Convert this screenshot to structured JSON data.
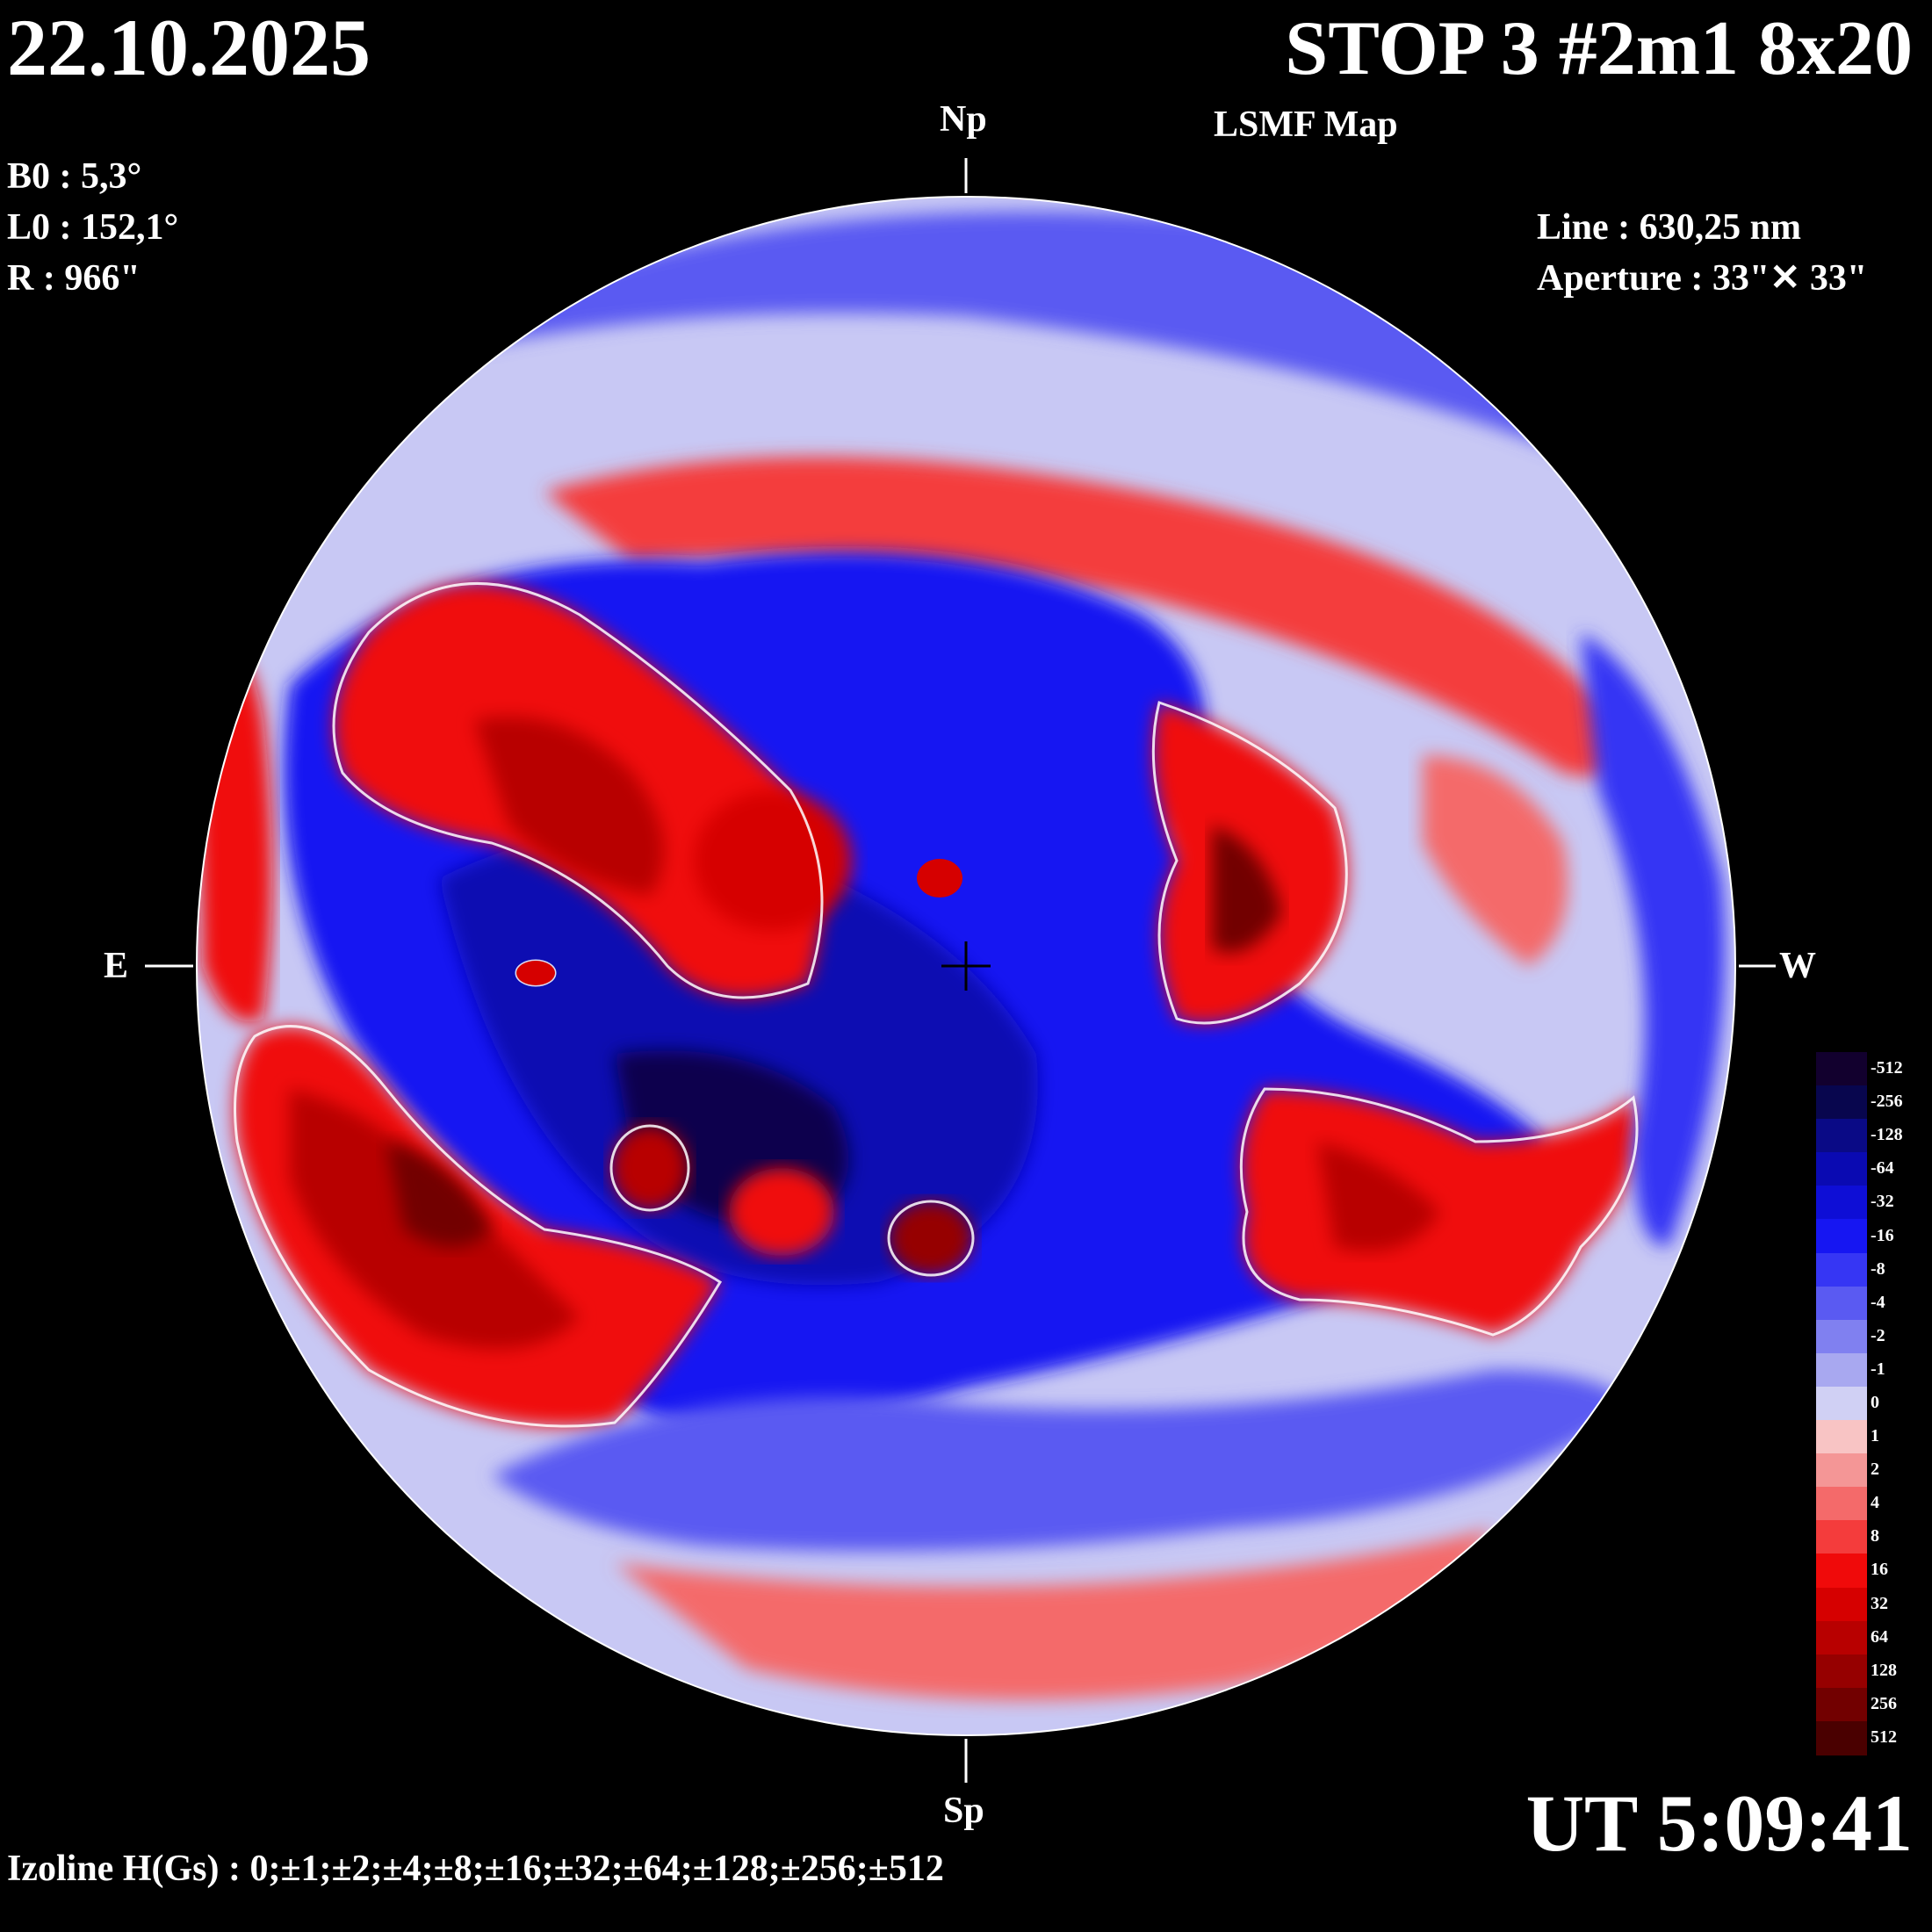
{
  "header": {
    "date": "22.10.2025",
    "title": "STOP 3 #2m1 8x20",
    "subtitle": "LSMF  Map",
    "ut": "UT 5:09:41"
  },
  "params": {
    "b0": "B0 : 5,3°",
    "l0": "L0 : 152,1°",
    "r": "R  : 966\""
  },
  "instrument": {
    "line": "Line :  630,25 nm",
    "aperture": "Aperture : 33\"✕ 33\""
  },
  "orientation": {
    "north": "Np",
    "south": "Sp",
    "east": "E",
    "west": "W"
  },
  "izoline": "Izoline H(Gs) : 0;±1;±2;±4;±8;±16;±32;±64;±128;±256;±512",
  "color_scale": {
    "levels": [
      {
        "label": "-512",
        "color": "#12002e"
      },
      {
        "label": "-256",
        "color": "#08064e"
      },
      {
        "label": "-128",
        "color": "#0a0a86"
      },
      {
        "label": "-64",
        "color": "#0a0ab2"
      },
      {
        "label": "-32",
        "color": "#0e0ed6"
      },
      {
        "label": "-16",
        "color": "#1616f2"
      },
      {
        "label": "-8",
        "color": "#3636f4"
      },
      {
        "label": "-4",
        "color": "#5a5af2"
      },
      {
        "label": "-2",
        "color": "#8080f0"
      },
      {
        "label": "-1",
        "color": "#a8a8f0"
      },
      {
        "label": "0",
        "color": "#d0d0f4"
      },
      {
        "label": "1",
        "color": "#f8c4c4"
      },
      {
        "label": "2",
        "color": "#f49696"
      },
      {
        "label": "4",
        "color": "#f46a6a"
      },
      {
        "label": "8",
        "color": "#f43c3c"
      },
      {
        "label": "16",
        "color": "#f00a0a"
      },
      {
        "label": "32",
        "color": "#d60000"
      },
      {
        "label": "64",
        "color": "#b80000"
      },
      {
        "label": "128",
        "color": "#960000"
      },
      {
        "label": "256",
        "color": "#720000"
      },
      {
        "label": "512",
        "color": "#4a0000"
      }
    ]
  }
}
